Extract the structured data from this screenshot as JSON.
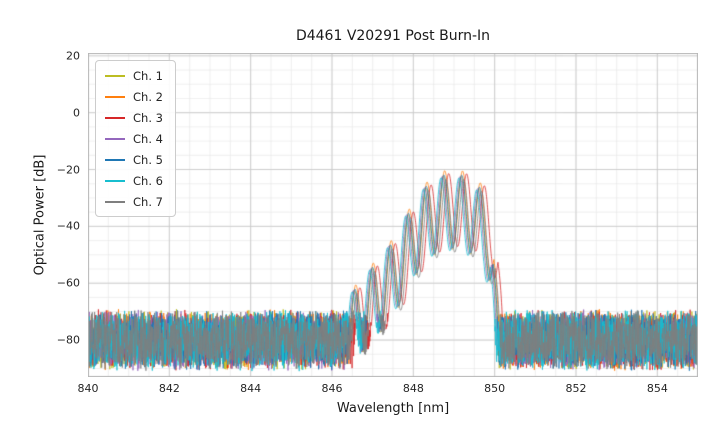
{
  "chart_data": {
    "type": "line",
    "title": "D4461 V20291 Post Burn-In",
    "xlabel": "Wavelength [nm]",
    "ylabel": "Optical Power [dB]",
    "xlim": [
      840,
      855
    ],
    "ylim": [
      -93,
      21
    ],
    "xticks": [
      840,
      842,
      844,
      846,
      848,
      850,
      852,
      854
    ],
    "yticks": [
      20,
      0,
      -20,
      -40,
      -60,
      -80
    ],
    "minor_x_step": 0.5,
    "minor_y_step": 5,
    "grid": true,
    "legend_position": "upper left",
    "series": [
      {
        "name": "Ch. 1",
        "color": "#bcbd22",
        "offset_nm": 0.0,
        "peak_db": -22.0
      },
      {
        "name": "Ch. 2",
        "color": "#ff7f0e",
        "offset_nm": 0.03,
        "peak_db": -20.0
      },
      {
        "name": "Ch. 3",
        "color": "#d62728",
        "offset_nm": 0.13,
        "peak_db": -21.0
      },
      {
        "name": "Ch. 4",
        "color": "#9467bd",
        "offset_nm": -0.03,
        "peak_db": -22.0
      },
      {
        "name": "Ch. 5",
        "color": "#1f77b4",
        "offset_nm": 0.01,
        "peak_db": -21.5
      },
      {
        "name": "Ch. 6",
        "color": "#17becf",
        "offset_nm": -0.06,
        "peak_db": -22.5
      },
      {
        "name": "Ch. 7",
        "color": "#7f7f7f",
        "offset_nm": 0.06,
        "peak_db": -23.0
      }
    ],
    "spectrum_model": {
      "noise_floor_range_db": [
        -69,
        -91
      ],
      "signal_band_nm": [
        846.2,
        850.1
      ],
      "mode_spacing_nm": 0.44,
      "mode_depth_db": 26,
      "mode_anchor_nm": 846.1,
      "reference_peak_db": -21.5,
      "envelope_points": [
        [
          846.2,
          -88
        ],
        [
          846.35,
          -70
        ],
        [
          846.6,
          -60
        ],
        [
          846.95,
          -55
        ],
        [
          847.35,
          -48
        ],
        [
          847.6,
          -43
        ],
        [
          847.95,
          -33
        ],
        [
          848.35,
          -25
        ],
        [
          848.7,
          -22
        ],
        [
          849.0,
          -21.5
        ],
        [
          849.35,
          -22.5
        ],
        [
          849.6,
          -26
        ],
        [
          849.8,
          -28.5
        ],
        [
          849.95,
          -40
        ],
        [
          850.05,
          -70
        ],
        [
          850.1,
          -88
        ]
      ]
    }
  }
}
